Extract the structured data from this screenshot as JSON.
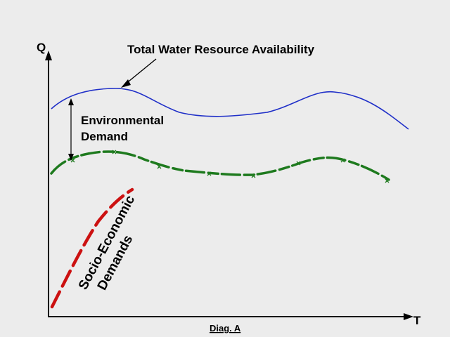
{
  "axes": {
    "y_label": "Q",
    "x_label": "T"
  },
  "labels": {
    "total_water": "Total Water Resource Availability",
    "environmental_line1": "Environmental",
    "environmental_line2": "Demand",
    "socio_line1": "Socio-Economic",
    "socio_line2": "Demands",
    "caption": "Diag. A"
  },
  "colors": {
    "background": "#ececec",
    "total_water_curve": "#1f2fc8",
    "environmental_curve": "#1e7a1e",
    "socio_economic_curve": "#cc1111",
    "axes": "#000000"
  }
}
